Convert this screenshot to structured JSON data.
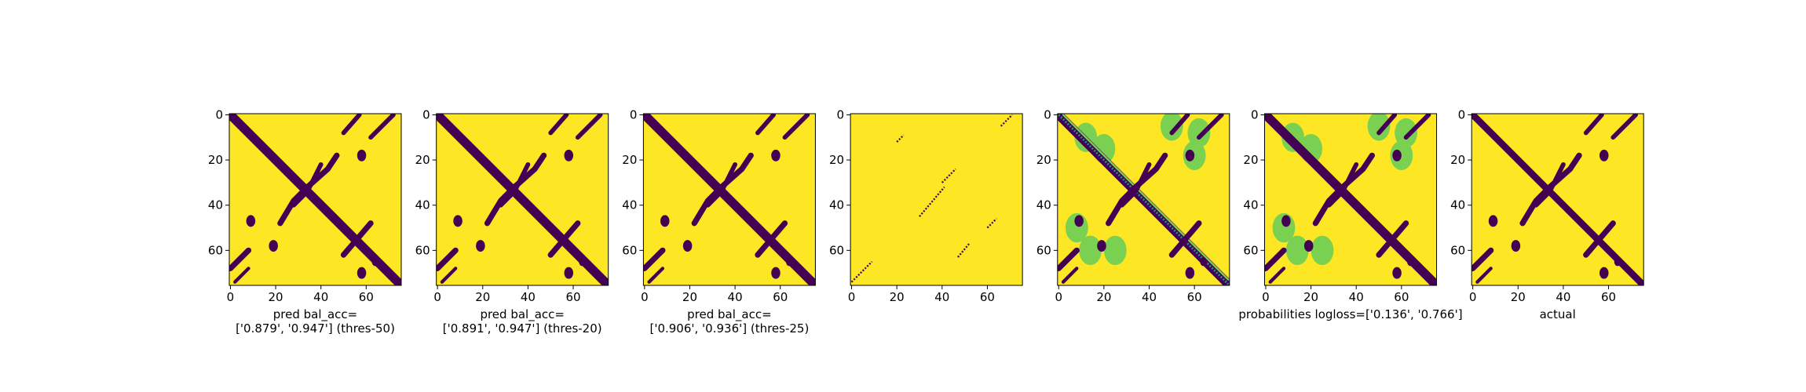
{
  "chart_data": [
    {
      "type": "image",
      "xlim": [
        -0.5,
        75.5
      ],
      "ylim": [
        75.5,
        -0.5
      ],
      "xticks": [
        0,
        20,
        40,
        60
      ],
      "yticks": [
        0,
        20,
        40,
        60
      ],
      "xlabel": [
        "pred bal_acc=",
        "['0.879', '0.947'] (thres-50)"
      ]
    },
    {
      "type": "image",
      "xlim": [
        -0.5,
        75.5
      ],
      "ylim": [
        75.5,
        -0.5
      ],
      "xticks": [
        0,
        20,
        40,
        60
      ],
      "yticks": [
        0,
        20,
        40,
        60
      ],
      "xlabel": [
        "pred bal_acc=",
        "['0.891', '0.947'] (thres-20)"
      ]
    },
    {
      "type": "image",
      "xlim": [
        -0.5,
        75.5
      ],
      "ylim": [
        75.5,
        -0.5
      ],
      "xticks": [
        0,
        20,
        40,
        60
      ],
      "yticks": [
        0,
        20,
        40,
        60
      ],
      "xlabel": [
        "pred bal_acc=",
        "['0.906', '0.936'] (thres-25)"
      ]
    },
    {
      "type": "image",
      "xlim": [
        -0.5,
        75.5
      ],
      "ylim": [
        75.5,
        -0.5
      ],
      "xticks": [
        0,
        20,
        40,
        60
      ],
      "yticks": [
        0,
        20,
        40,
        60
      ]
    },
    {
      "type": "image",
      "xlim": [
        -0.5,
        75.5
      ],
      "ylim": [
        75.5,
        -0.5
      ],
      "xticks": [
        0,
        20,
        40,
        60
      ],
      "yticks": [
        0,
        20,
        40,
        60
      ]
    },
    {
      "type": "image",
      "xlim": [
        -0.5,
        75.5
      ],
      "ylim": [
        75.5,
        -0.5
      ],
      "xticks": [
        0,
        20,
        40,
        60
      ],
      "yticks": [
        0,
        20,
        40,
        60
      ],
      "xlabel": [
        "probabilities logloss=['0.136', '0.766']"
      ]
    },
    {
      "type": "image",
      "xlim": [
        -0.5,
        75.5
      ],
      "ylim": [
        75.5,
        -0.5
      ],
      "xticks": [
        0,
        20,
        40,
        60
      ],
      "yticks": [
        0,
        20,
        40,
        60
      ],
      "xlabel": [
        "actual"
      ]
    }
  ]
}
